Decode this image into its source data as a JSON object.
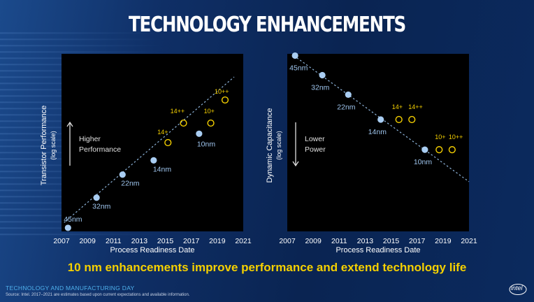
{
  "slide": {
    "title": "TECHNOLOGY ENHANCEMENTS",
    "tagline": "10 nm enhancements improve performance and extend technology life",
    "footer_title": "TECHNOLOGY AND MANUFACTURING DAY",
    "footer_source": "Source: Intel. 2017–2021 are estimates based upon current expectations and available information.",
    "logo_text": "intel"
  },
  "colors": {
    "node_point": "#a9cdf2",
    "plus_ring": "#f5d000",
    "tagline": "#f5d000",
    "panel": "#000000"
  },
  "chart_data": [
    {
      "type": "scatter",
      "ylabel": "Transistor Performance",
      "ylabel_sub": "(log scale)",
      "xlabel": "Process Readiness Date",
      "xlim": [
        2007,
        2021
      ],
      "xticks": [
        "2007",
        "2009",
        "2011",
        "2013",
        "2015",
        "2017",
        "2019",
        "2021"
      ],
      "y_scale": "log",
      "annotation": {
        "line1": "Higher",
        "line2": "Performance",
        "arrow": "up"
      },
      "trend": {
        "x": [
          2007.2,
          2020.3
        ],
        "y": [
          0.05,
          0.87
        ]
      },
      "series": [
        {
          "type": "scatter",
          "marker": "filled-circle",
          "points": [
            {
              "label": "45nm",
              "x": 2007.5,
              "y": 0.02
            },
            {
              "label": "32nm",
              "x": 2009.7,
              "y": 0.19
            },
            {
              "label": "22nm",
              "x": 2011.7,
              "y": 0.32
            },
            {
              "label": "14nm",
              "x": 2014.1,
              "y": 0.4
            },
            {
              "label": "10nm",
              "x": 2017.6,
              "y": 0.55
            }
          ]
        },
        {
          "type": "scatter",
          "marker": "open-circle",
          "points": [
            {
              "label": "14+",
              "x": 2015.2,
              "y": 0.5
            },
            {
              "label": "14++",
              "x": 2016.4,
              "y": 0.61
            },
            {
              "label": "10+",
              "x": 2018.5,
              "y": 0.61
            },
            {
              "label": "10++",
              "x": 2019.6,
              "y": 0.74
            }
          ]
        }
      ]
    },
    {
      "type": "scatter",
      "ylabel": "Dynamic Capacitance",
      "ylabel_sub": "(log scale)",
      "xlabel": "Process Readiness Date",
      "xlim": [
        2007,
        2021
      ],
      "xticks": [
        "2007",
        "2009",
        "2011",
        "2013",
        "2015",
        "2017",
        "2019",
        "2021"
      ],
      "y_scale": "log",
      "annotation": {
        "line1": "Lower",
        "line2": "Power",
        "arrow": "down"
      },
      "trend": {
        "x": [
          2007.5,
          2021.0
        ],
        "y": [
          0.99,
          0.28
        ]
      },
      "series": [
        {
          "type": "scatter",
          "marker": "filled-circle",
          "points": [
            {
              "label": "45nm",
              "x": 2007.6,
              "y": 0.99
            },
            {
              "label": "32nm",
              "x": 2009.7,
              "y": 0.88
            },
            {
              "label": "22nm",
              "x": 2011.7,
              "y": 0.77
            },
            {
              "label": "14nm",
              "x": 2014.2,
              "y": 0.63
            },
            {
              "label": "10nm",
              "x": 2017.6,
              "y": 0.46
            }
          ]
        },
        {
          "type": "scatter",
          "marker": "open-circle",
          "points": [
            {
              "label": "14+",
              "x": 2015.6,
              "y": 0.63
            },
            {
              "label": "14++",
              "x": 2016.6,
              "y": 0.63
            },
            {
              "label": "10+",
              "x": 2018.7,
              "y": 0.46
            },
            {
              "label": "10++",
              "x": 2019.7,
              "y": 0.46
            }
          ]
        }
      ]
    }
  ]
}
